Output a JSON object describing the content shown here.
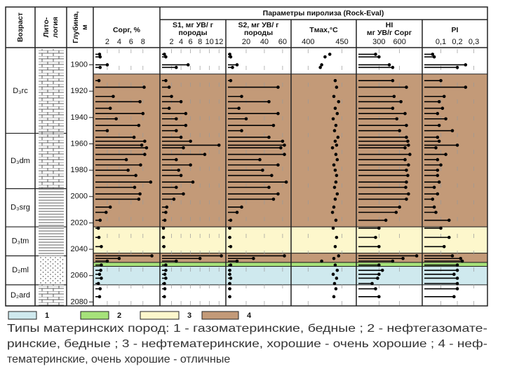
{
  "chart_data": {
    "type": "well-log",
    "title": "Параметры пиролиза (Rock-Eval)",
    "age_label": "Возраст",
    "lith_label": [
      "Лито-",
      "логия"
    ],
    "depth_label": [
      "Глубина,",
      "м"
    ],
    "ylim": [
      1888,
      2083
    ],
    "yticks": [
      1900,
      1920,
      1940,
      1960,
      1980,
      2000,
      2020,
      2040,
      2060,
      2080
    ],
    "depths": [
      1892,
      1894,
      1900,
      1902,
      1912,
      1917,
      1924,
      1928,
      1933,
      1937,
      1941,
      1946,
      1950,
      1955,
      1958,
      1961,
      1963,
      1968,
      1972,
      1976,
      1980,
      1984,
      1989,
      1993,
      1998,
      2002,
      2008,
      2012,
      2018,
      2024,
      2031,
      2038,
      2045,
      2047,
      2049,
      2052,
      2056,
      2059,
      2062,
      2066,
      2070,
      2076
    ],
    "tracks": [
      {
        "name": [
          "Сорг, %"
        ],
        "kind": "lollipop",
        "xlim": [
          0,
          10.5
        ],
        "xticks": [
          2,
          4,
          6,
          8
        ],
        "values": [
          0.7,
          0.8,
          2.0,
          0.8,
          0.6,
          8.2,
          3.0,
          7.5,
          2.5,
          8.0,
          3.5,
          7.3,
          2.0,
          6.5,
          8.3,
          7.8,
          8.6,
          8.3,
          5.2,
          7.6,
          5.5,
          6.8,
          9.3,
          6.6,
          7.5,
          7.3,
          2.5,
          1.8,
          0.8,
          0.5,
          0.6,
          1.0,
          9.5,
          4.0,
          2.0,
          1.0,
          0.9,
          0.7,
          1.0,
          0.5,
          0.8,
          0.7
        ]
      },
      {
        "name": [
          "S1, мг УВ/ г",
          "породы"
        ],
        "kind": "lollipop",
        "xlim": [
          0,
          13
        ],
        "xticks": [
          2,
          4,
          6,
          8,
          10,
          12
        ],
        "values": [
          0.5,
          0.8,
          5.5,
          3.0,
          0.8,
          1.5,
          2.0,
          4.0,
          1.5,
          5.0,
          3.0,
          5.0,
          3.0,
          4.0,
          6.0,
          12.0,
          4.5,
          9.0,
          3.0,
          6.0,
          3.5,
          4.0,
          6.5,
          3.0,
          4.5,
          2.5,
          1.0,
          0.8,
          0.6,
          0.3,
          0.3,
          0.4,
          12.5,
          8.0,
          3.0,
          0.8,
          0.8,
          0.6,
          0.8,
          0.5,
          0.6,
          0.5
        ]
      },
      {
        "name": [
          "S2, мг УВ/ г",
          "породы"
        ],
        "kind": "lollipop",
        "xlim": [
          0,
          67
        ],
        "xticks": [
          20,
          40,
          60
        ],
        "values": [
          2,
          3,
          10,
          5,
          3,
          55,
          15,
          45,
          12,
          55,
          20,
          50,
          15,
          45,
          60,
          62,
          58,
          62,
          35,
          55,
          38,
          48,
          64,
          45,
          55,
          50,
          15,
          10,
          3,
          2,
          2,
          3,
          62,
          28,
          10,
          3,
          2,
          2,
          3,
          2,
          2,
          2
        ]
      },
      {
        "name": [
          "Tмах,°C"
        ],
        "kind": "dot",
        "xlim": [
          378,
          468
        ],
        "xticks": [
          400,
          450
        ],
        "values": [
          432,
          425,
          420,
          418,
          440,
          442,
          438,
          445,
          440,
          443,
          437,
          441,
          439,
          444,
          440,
          442,
          436,
          441,
          443,
          438,
          440,
          442,
          441,
          439,
          443,
          440,
          438,
          436,
          441,
          437,
          442,
          440,
          445,
          438,
          420,
          440,
          443,
          437,
          442,
          439,
          441,
          438
        ]
      },
      {
        "name": [
          "HI",
          "мг УВ/г Сорг"
        ],
        "kind": "lollipop",
        "xlim": [
          0,
          900
        ],
        "xticks": [
          300,
          600
        ],
        "values": [
          250,
          300,
          450,
          500,
          500,
          700,
          520,
          620,
          500,
          680,
          560,
          700,
          600,
          700,
          720,
          730,
          680,
          750,
          680,
          730,
          700,
          720,
          700,
          690,
          730,
          700,
          600,
          550,
          400,
          300,
          250,
          300,
          850,
          650,
          500,
          300,
          350,
          300,
          280,
          200,
          250,
          300
        ]
      },
      {
        "name": [
          "PI"
        ],
        "kind": "lollipop",
        "xlim": [
          0,
          0.37
        ],
        "xticks": [
          {
            "value": 0.1,
            "label": "0,1"
          },
          {
            "value": 0.2,
            "label": "0,2"
          },
          {
            "value": 0.3,
            "label": "0,3"
          }
        ],
        "values": [
          0.05,
          0.06,
          0.25,
          0.2,
          0.1,
          0.25,
          0.12,
          0.09,
          0.11,
          0.08,
          0.13,
          0.09,
          0.17,
          0.08,
          0.09,
          0.2,
          0.07,
          0.13,
          0.08,
          0.1,
          0.08,
          0.08,
          0.09,
          0.06,
          0.08,
          0.05,
          0.06,
          0.07,
          0.15,
          0.1,
          0.15,
          0.12,
          0.17,
          0.22,
          0.23,
          0.2,
          0.2,
          0.18,
          0.2,
          0.2,
          0.2,
          0.18
        ]
      }
    ],
    "zones": [
      {
        "from": 1907,
        "to": 2023,
        "type": "4"
      },
      {
        "from": 2023,
        "to": 2043,
        "type": "3"
      },
      {
        "from": 2043,
        "to": 2050,
        "type": "4"
      },
      {
        "from": 2050,
        "to": 2053,
        "type": "2"
      },
      {
        "from": 2053,
        "to": 2067,
        "type": "1"
      }
    ],
    "strat": [
      {
        "label": "D₃rc",
        "from": 1888,
        "to": 1952
      },
      {
        "label": "D₃dm",
        "from": 1952,
        "to": 1994
      },
      {
        "label": "D₃srg",
        "from": 1994,
        "to": 2023
      },
      {
        "label": "D₃tm",
        "from": 2023,
        "to": 2045
      },
      {
        "label": "D₂ml",
        "from": 2045,
        "to": 2067
      },
      {
        "label": "D₂ard",
        "from": 2067,
        "to": 2083
      }
    ],
    "legend": [
      {
        "label": "1",
        "color": "#cfe9ee"
      },
      {
        "label": "2",
        "color": "#a6e27a"
      },
      {
        "label": "3",
        "color": "#fdf7cc"
      },
      {
        "label": "4",
        "color": "#c39a78"
      }
    ],
    "caption": [
      "Типы материнских пород: 1 - газоматеринские, бедные ; 2 - нефтегазомате-",
      "ринские, бедные ; 3 - нефтематеринские, хорошие - очень хорошие ; 4 - неф-",
      "тематеринские, очень хорошие - отличные"
    ]
  }
}
